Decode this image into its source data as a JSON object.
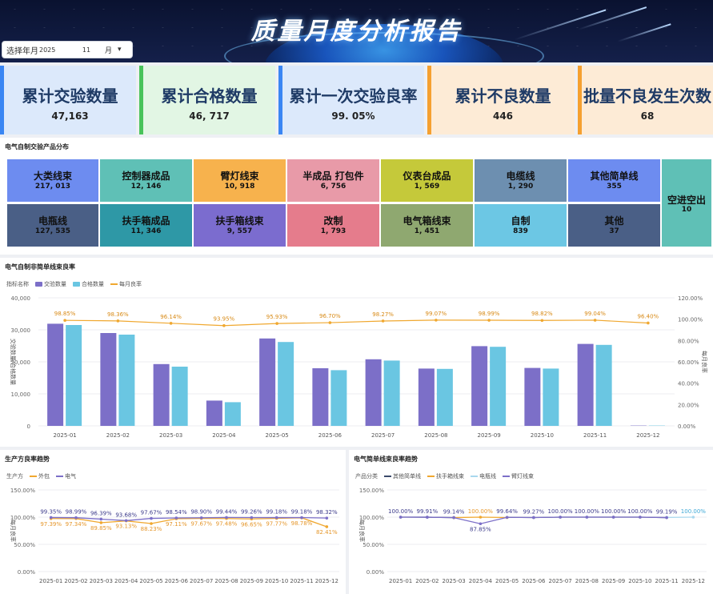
{
  "header": {
    "title": "质量月度分析报告"
  },
  "year_month": {
    "label": "选择年月",
    "year": "2025",
    "month": "11",
    "month_unit": "月"
  },
  "kpis": [
    {
      "label": "累计交验数量",
      "value": "47,163",
      "color": "#dce9fb",
      "accent": "#3a86f3"
    },
    {
      "label": "累计合格数量",
      "value": "46, 717",
      "color": "#e2f6e4",
      "accent": "#48c35a"
    },
    {
      "label": "累计一次交验良率",
      "value": "99. 05%",
      "color": "#dce9fb",
      "accent": "#3a86f3"
    },
    {
      "label": "累计不良数量",
      "value": "446",
      "color": "#fdebd6",
      "accent": "#f5a030"
    },
    {
      "label": "批量不良发生次数",
      "value": "68",
      "color": "#fdebd6",
      "accent": "#f5a030"
    }
  ],
  "treemap": {
    "title": "电气自制交验产品分布",
    "cells": [
      {
        "name": "大类线束",
        "value": "217, 013",
        "color": "#6d8cf0"
      },
      {
        "name": "控制器成品",
        "value": "12, 146",
        "color": "#5fc0b6"
      },
      {
        "name": "臂灯线束",
        "value": "10, 918",
        "color": "#f7b24d"
      },
      {
        "name": "半成品  打包件",
        "value": "6, 756",
        "color": "#e89aa8"
      },
      {
        "name": "仪表台成品",
        "value": "1, 569",
        "color": "#c5c93a"
      },
      {
        "name": "电缆线",
        "value": "1, 290",
        "color": "#6d8fb0"
      },
      {
        "name": "其他简单线",
        "value": "355",
        "color": "#6d8cf0"
      },
      {
        "name": "电瓶线",
        "value": "127, 535",
        "color": "#4a5f86"
      },
      {
        "name": "扶手箱成品",
        "value": "11, 346",
        "color": "#2e98a6"
      },
      {
        "name": "扶手箱线束",
        "value": "9, 557",
        "color": "#7b6ccf"
      },
      {
        "name": "改制",
        "value": "1, 793",
        "color": "#e57c8c"
      },
      {
        "name": "电气箱线束",
        "value": "1, 451",
        "color": "#8fa870"
      },
      {
        "name": "自制",
        "value": "839",
        "color": "#6cc7e4"
      },
      {
        "name": "其他",
        "value": "37",
        "color": "#4a5f86"
      },
      {
        "name": "空进空出",
        "value": "10",
        "color": "#5fc0b6"
      }
    ]
  },
  "main_chart": {
    "title": "电气自制非简单线束良率",
    "legend_label": "指标名称",
    "ylabel_left": "交验数量/合格数量",
    "ylabel_right": "每月良率"
  },
  "chart_data": [
    {
      "type": "bar",
      "title": "电气自制非简单线束良率",
      "categories": [
        "2025-01",
        "2025-02",
        "2025-03",
        "2025-04",
        "2025-05",
        "2025-06",
        "2025-07",
        "2025-08",
        "2025-09",
        "2025-10",
        "2025-11",
        "2025-12"
      ],
      "series": [
        {
          "name": "交验数量",
          "values": [
            31900,
            29000,
            19300,
            7900,
            27300,
            18000,
            20800,
            17900,
            24900,
            18100,
            25600,
            100
          ],
          "color": "#7c6fc8"
        },
        {
          "name": "合格数量",
          "values": [
            31500,
            28500,
            18500,
            7400,
            26200,
            17400,
            20400,
            17800,
            24700,
            17900,
            25300,
            100
          ],
          "color": "#6ac6e2"
        },
        {
          "name": "每月良率",
          "type": "line",
          "axis": "right",
          "values": [
            98.85,
            98.36,
            96.14,
            93.95,
            95.93,
            96.7,
            98.27,
            99.07,
            98.99,
            98.82,
            99.04,
            96.4
          ],
          "labels": [
            "98.85%",
            "98.36%",
            "96.14%",
            "93.95%",
            "95.93%",
            "96.70%",
            "98.27%",
            "99.07%",
            "98.99%",
            "98.82%",
            "99.04%",
            "96.40%"
          ],
          "color": "#f0a830"
        }
      ],
      "ylim": [
        0,
        40000
      ],
      "yticks": [
        "0",
        "10,000",
        "20,000",
        "30,000",
        "40,000"
      ],
      "ylim_right": [
        0,
        120
      ],
      "yticks_right": [
        "0.00%",
        "20.00%",
        "40.00%",
        "60.00%",
        "80.00%",
        "100.00%",
        "120.00%"
      ]
    },
    {
      "type": "line",
      "title": "生产方良率趋势",
      "legend_label": "生产方",
      "ylabel": "每月良率",
      "categories": [
        "2025-01",
        "2025-02",
        "2025-03",
        "2025-04",
        "2025-05",
        "2025-06",
        "2025-07",
        "2025-08",
        "2025-09",
        "2025-10",
        "2025-11",
        "2025-12"
      ],
      "series": [
        {
          "name": "外包",
          "values": [
            97.39,
            97.34,
            89.85,
            93.13,
            88.23,
            97.11,
            97.67,
            97.48,
            96.65,
            97.77,
            98.78,
            82.41
          ],
          "labels": [
            "97.39%",
            "97.34%",
            "89.85%",
            "93.13%",
            "88.23%",
            "97.11%",
            "97.67%",
            "97.48%",
            "96.65%",
            "97.77%",
            "98.78%",
            "82.41%"
          ],
          "color": "#f0a830"
        },
        {
          "name": "电气",
          "values": [
            99.35,
            98.99,
            96.39,
            93.68,
            97.67,
            98.54,
            98.9,
            99.44,
            99.26,
            99.18,
            99.18,
            98.32
          ],
          "labels": [
            "99.35%",
            "98.99%",
            "96.39%",
            "93.68%",
            "97.67%",
            "98.54%",
            "98.90%",
            "99.44%",
            "99.26%",
            "99.18%",
            "99.18%",
            "98.32%"
          ],
          "color": "#7c6fc8"
        }
      ],
      "ylim": [
        0,
        150
      ],
      "yticks": [
        "0.00%",
        "50.00%",
        "100.00%",
        "150.00%"
      ]
    },
    {
      "type": "line",
      "title": "电气简单线束良率趋势",
      "legend_label": "产品分类",
      "ylabel": "每月良率",
      "categories": [
        "2025-01",
        "2025-02",
        "2025-03",
        "2025-04",
        "2025-05",
        "2025-06",
        "2025-07",
        "2025-08",
        "2025-09",
        "2025-10",
        "2025-11",
        "2025-12"
      ],
      "series": [
        {
          "name": "其他简单线",
          "values": [
            100,
            99.91,
            99.14,
            null,
            99.64,
            99.27,
            100,
            100,
            100,
            100,
            99.19,
            null
          ],
          "labels": [
            "100.00%",
            "99.91%",
            "99.14%",
            "",
            "99.64%",
            "99.27%",
            "100.00%",
            "100.00%",
            "100.00%",
            "100.00%",
            "99.19%",
            ""
          ],
          "color": "#3b4a6b"
        },
        {
          "name": "扶手箱线束",
          "values": [
            null,
            null,
            99.2,
            100,
            99.3,
            null,
            null,
            null,
            null,
            null,
            null,
            null
          ],
          "labels": [
            "",
            "",
            "",
            "100.00%",
            "",
            "",
            "",
            "",
            "",
            "",
            "",
            ""
          ],
          "color": "#f0a830"
        },
        {
          "name": "电瓶线",
          "values": [
            null,
            null,
            null,
            null,
            null,
            null,
            null,
            100,
            null,
            null,
            99.5,
            100
          ],
          "labels": [
            "",
            "",
            "",
            "",
            "",
            "",
            "",
            "",
            "",
            "",
            "",
            "100.00%"
          ],
          "color": "#a9d8ee"
        },
        {
          "name": "臂灯线束",
          "values": [
            100,
            99.9,
            99.1,
            87.85,
            99.6,
            99.3,
            100,
            100,
            100,
            100,
            99.2,
            null
          ],
          "labels": [
            "",
            "",
            "",
            "87.85%",
            "",
            "",
            "",
            "",
            "",
            "",
            "",
            ""
          ],
          "color": "#7c6fc8"
        }
      ],
      "ylim": [
        0,
        150
      ],
      "yticks": [
        "0.00%",
        "50.00%",
        "100.00%",
        "150.00%"
      ]
    }
  ]
}
